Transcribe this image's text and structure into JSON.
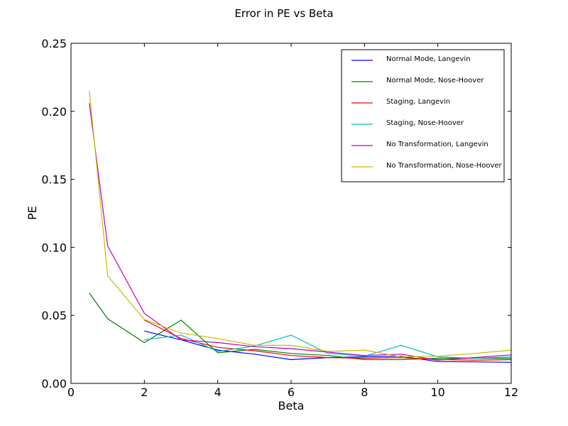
{
  "chart_data": {
    "type": "line",
    "title": "Error in PE vs Beta",
    "xlabel": "Beta",
    "ylabel": "PE",
    "xlim": [
      0,
      12
    ],
    "ylim": [
      0,
      0.25
    ],
    "x_ticks": [
      "0",
      "2",
      "4",
      "6",
      "8",
      "10",
      "12"
    ],
    "y_ticks": [
      "0.00",
      "0.05",
      "0.10",
      "0.15",
      "0.20",
      "0.25"
    ],
    "grid": false,
    "legend_position": "top-right",
    "series": [
      {
        "name": "Normal Mode, Langevin",
        "color": "#0000ff",
        "x": [
          2,
          3,
          4,
          5,
          6,
          7,
          8,
          9,
          10,
          11,
          12
        ],
        "y": [
          0.0385,
          0.032,
          0.0245,
          0.0215,
          0.0175,
          0.019,
          0.0195,
          0.02,
          0.016,
          0.0158,
          0.0155
        ]
      },
      {
        "name": "Normal Mode, Nose-Hoover",
        "color": "#008000",
        "x": [
          0.5,
          1,
          2,
          3,
          4,
          5,
          6,
          7,
          8,
          9,
          10,
          11,
          12
        ],
        "y": [
          0.0665,
          0.0475,
          0.03,
          0.0465,
          0.0225,
          0.025,
          0.022,
          0.0205,
          0.0175,
          0.0175,
          0.0185,
          0.0185,
          0.0185
        ]
      },
      {
        "name": "Staging, Langevin",
        "color": "#ff0000",
        "x": [
          2,
          3,
          4,
          5,
          6,
          7,
          8,
          9,
          10,
          11,
          12
        ],
        "y": [
          0.0465,
          0.033,
          0.0265,
          0.024,
          0.0205,
          0.019,
          0.0185,
          0.019,
          0.0175,
          0.017,
          0.0175
        ]
      },
      {
        "name": "Staging, Nose-Hoover",
        "color": "#00bfbf",
        "x": [
          2,
          3,
          4,
          5,
          6,
          7,
          8,
          9,
          10,
          11,
          12
        ],
        "y": [
          0.032,
          0.0355,
          0.0235,
          0.0275,
          0.0355,
          0.022,
          0.02,
          0.028,
          0.0195,
          0.0185,
          0.0195
        ]
      },
      {
        "name": "No Transformation, Langevin",
        "color": "#bf00bf",
        "x": [
          0.5,
          1,
          2,
          3,
          4,
          5,
          6,
          7,
          8,
          9,
          10,
          11,
          12
        ],
        "y": [
          0.206,
          0.101,
          0.0515,
          0.032,
          0.03,
          0.027,
          0.0255,
          0.023,
          0.0205,
          0.0215,
          0.017,
          0.019,
          0.021
        ]
      },
      {
        "name": "No Transformation, Nose-Hoover",
        "color": "#bfbf00",
        "x": [
          0.5,
          1,
          2,
          3,
          4,
          5,
          6,
          7,
          8,
          9,
          10,
          11,
          12
        ],
        "y": [
          0.215,
          0.079,
          0.047,
          0.037,
          0.033,
          0.028,
          0.028,
          0.0235,
          0.0245,
          0.0195,
          0.02,
          0.022,
          0.0245
        ]
      }
    ]
  }
}
